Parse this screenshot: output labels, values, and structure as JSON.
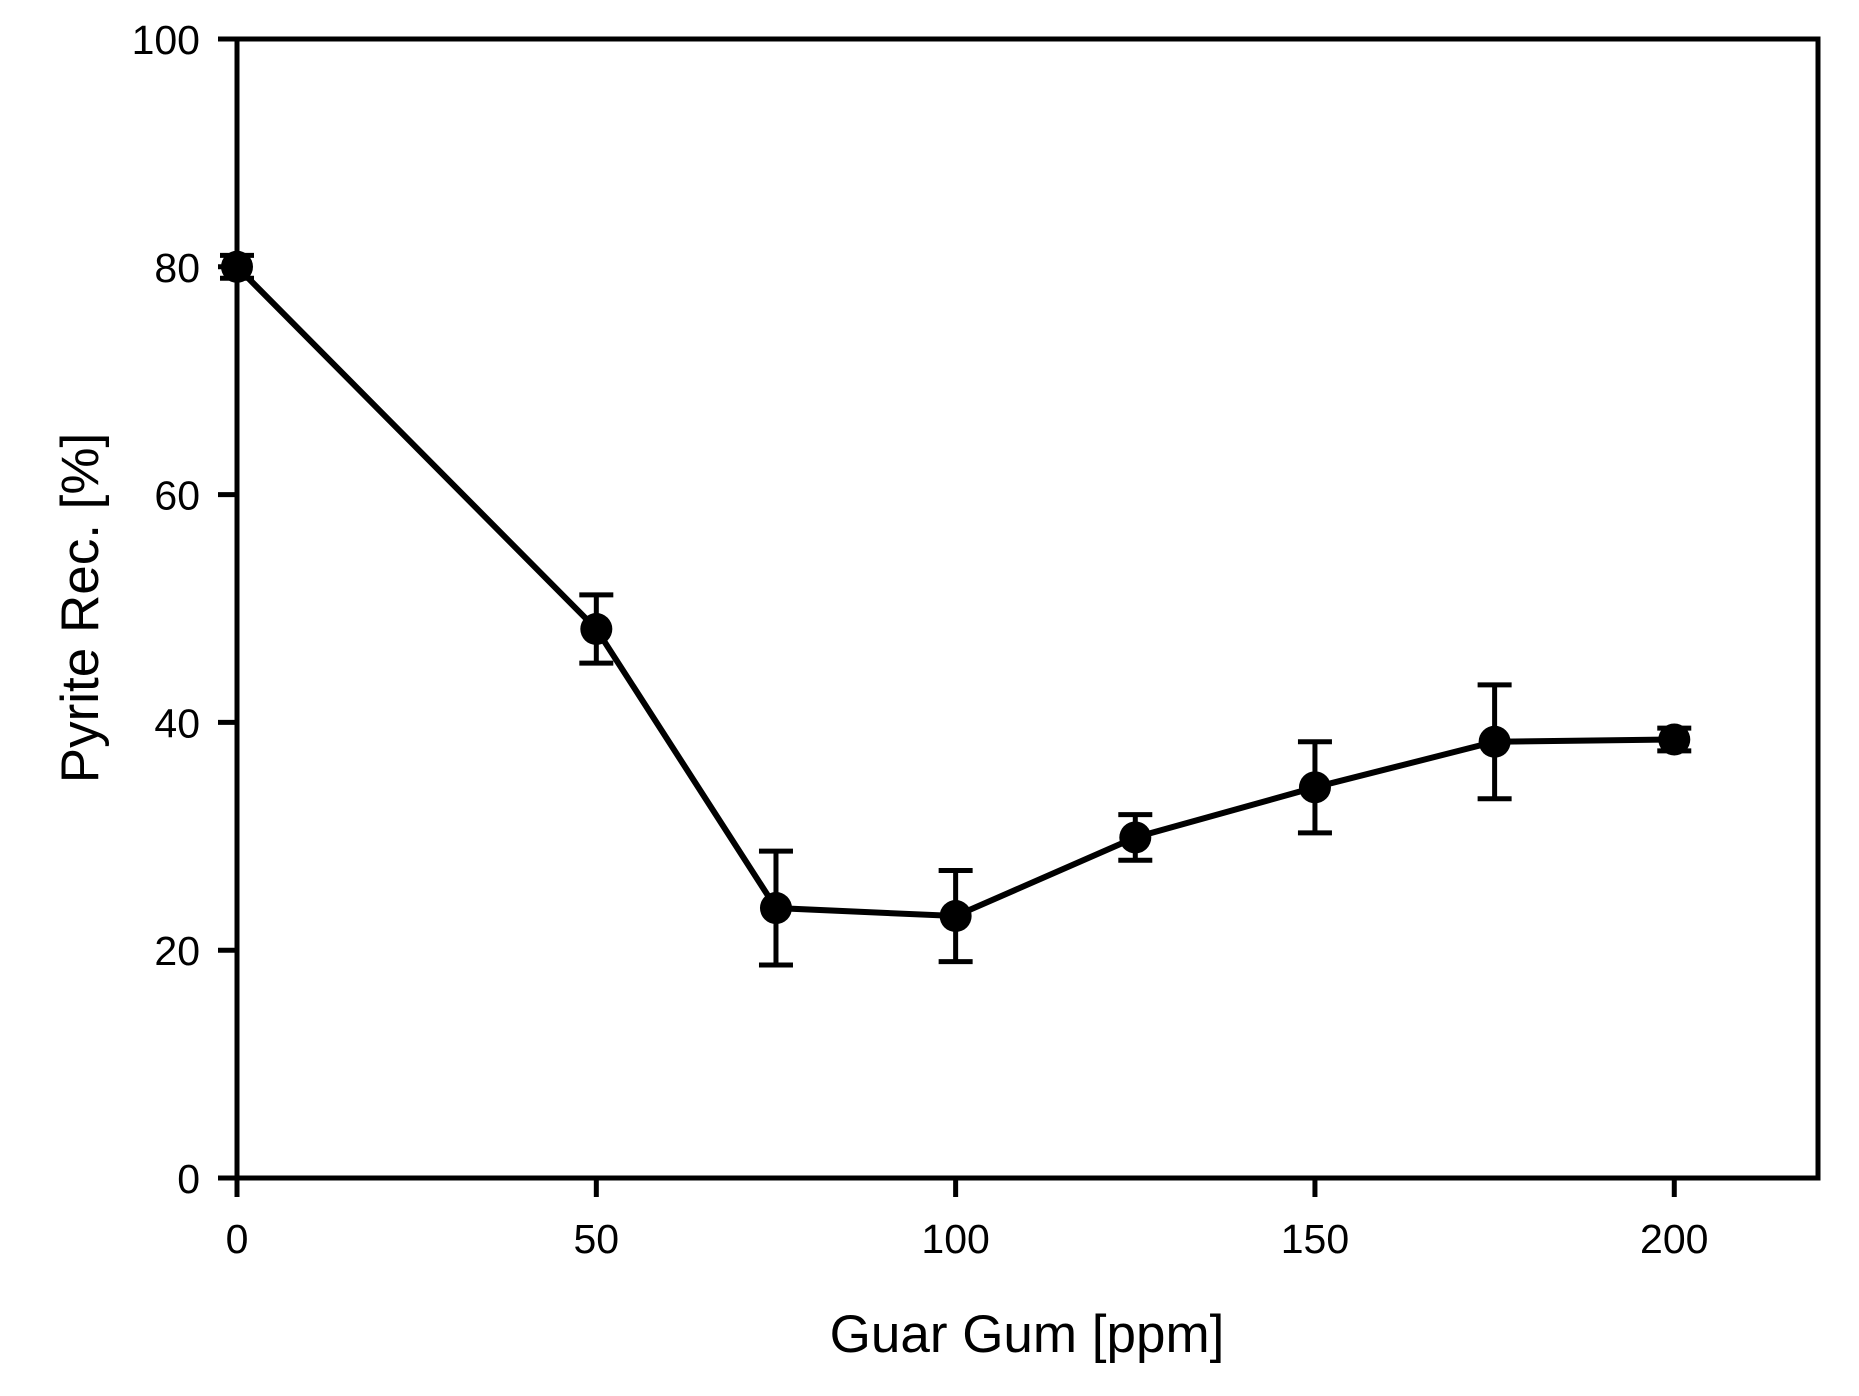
{
  "figure": {
    "background_color": "#ffffff",
    "foreground_color": "#000000"
  },
  "chart_data": {
    "type": "line",
    "title": "",
    "xlabel": "Guar Gum [ppm]",
    "ylabel": "Pyrite Rec. [%]",
    "x": [
      0,
      50,
      75,
      100,
      125,
      150,
      175,
      200
    ],
    "y": [
      80.0,
      48.2,
      23.7,
      23.0,
      29.9,
      34.3,
      38.3,
      38.5
    ],
    "y_err": [
      1.0,
      3.0,
      5.0,
      4.0,
      2.0,
      4.0,
      5.0,
      1.0
    ],
    "xlim": [
      0,
      220
    ],
    "ylim": [
      0,
      100
    ],
    "x_ticks": [
      0,
      50,
      100,
      150,
      200
    ],
    "y_ticks": [
      0,
      20,
      40,
      60,
      80,
      100
    ],
    "grid": false,
    "legend": "none",
    "marker": "filled-circle",
    "marker_color": "#000000",
    "line_color": "#000000",
    "error_bar_color": "#000000",
    "frame": "full-box"
  }
}
